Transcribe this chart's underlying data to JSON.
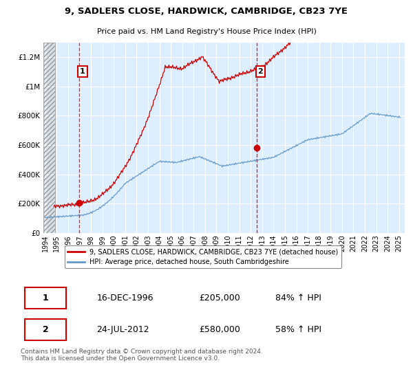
{
  "title": "9, SADLERS CLOSE, HARDWICK, CAMBRIDGE, CB23 7YE",
  "subtitle": "Price paid vs. HM Land Registry's House Price Index (HPI)",
  "ylim": [
    0,
    1300000
  ],
  "yticks": [
    0,
    200000,
    400000,
    600000,
    800000,
    1000000,
    1200000
  ],
  "ytick_labels": [
    "£0",
    "£200K",
    "£400K",
    "£600K",
    "£800K",
    "£1M",
    "£1.2M"
  ],
  "xlim_start": 1993.83,
  "xlim_end": 2025.5,
  "background_color": "#ffffff",
  "plot_bg_color": "#ddeeff",
  "grid_color": "#ffffff",
  "red_line_color": "#cc0000",
  "blue_line_color": "#6699cc",
  "point1_x": 1996.96,
  "point1_y": 205000,
  "point1_label": "1",
  "point1_date": "16-DEC-1996",
  "point1_price": "£205,000",
  "point1_hpi": "84% ↑ HPI",
  "point2_x": 2012.56,
  "point2_y": 580000,
  "point2_label": "2",
  "point2_date": "24-JUL-2012",
  "point2_price": "£580,000",
  "point2_hpi": "58% ↑ HPI",
  "legend_line1": "9, SADLERS CLOSE, HARDWICK, CAMBRIDGE, CB23 7YE (detached house)",
  "legend_line2": "HPI: Average price, detached house, South Cambridgeshire",
  "footer": "Contains HM Land Registry data © Crown copyright and database right 2024.\nThis data is licensed under the Open Government Licence v3.0.",
  "hatch_end": 1994.83
}
